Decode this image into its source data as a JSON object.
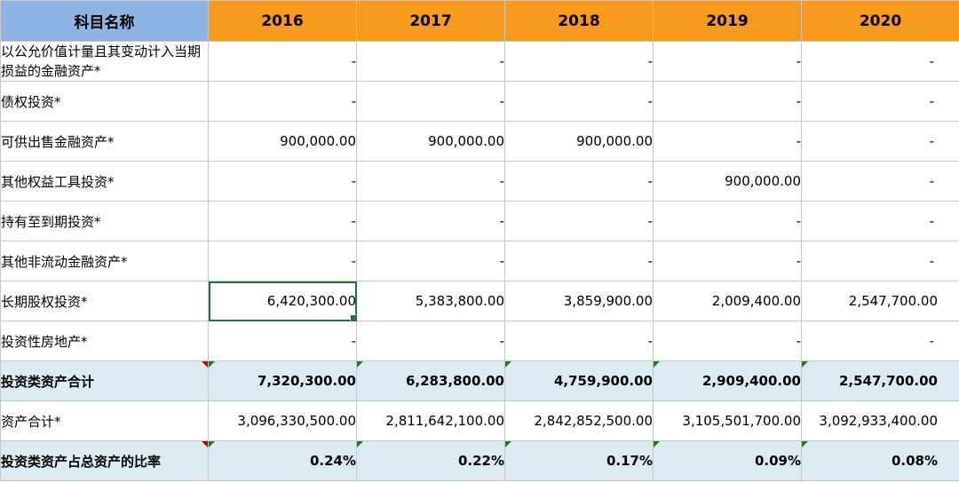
{
  "header": {
    "name": "科目名称",
    "years": [
      "2016",
      "2017",
      "2018",
      "2019",
      "2020"
    ]
  },
  "rows": [
    {
      "name": "以公允价值计量且其变动计入当期损益的金融资产*",
      "values": [
        "-",
        "-",
        "-",
        "-",
        "-"
      ]
    },
    {
      "name": "债权投资*",
      "values": [
        "-",
        "-",
        "-",
        "-",
        "-"
      ]
    },
    {
      "name": "可供出售金融资产*",
      "values": [
        "900,000.00",
        "900,000.00",
        "900,000.00",
        "-",
        "-"
      ]
    },
    {
      "name": "其他权益工具投资*",
      "values": [
        "-",
        "-",
        "-",
        "900,000.00",
        "-"
      ]
    },
    {
      "name": "持有至到期投资*",
      "values": [
        "-",
        "-",
        "-",
        "-",
        "-"
      ]
    },
    {
      "name": "其他非流动金融资产*",
      "values": [
        "-",
        "-",
        "-",
        "-",
        "-"
      ]
    },
    {
      "name": "长期股权投资*",
      "values": [
        "6,420,300.00",
        "5,383,800.00",
        "3,859,900.00",
        "2,009,400.00",
        "2,547,700.00"
      ]
    },
    {
      "name": "投资性房地产*",
      "values": [
        "-",
        "-",
        "-",
        "-",
        "-"
      ]
    },
    {
      "name": "投资类资产合计",
      "values": [
        "7,320,300.00",
        "6,283,800.00",
        "4,759,900.00",
        "2,909,400.00",
        "2,547,700.00"
      ]
    },
    {
      "name": "资产合计*",
      "values": [
        "3,096,330,500.00",
        "2,811,642,100.00",
        "2,842,852,500.00",
        "3,105,501,700.00",
        "3,092,933,400.00"
      ]
    },
    {
      "name": "投资类资产占总资产的比率",
      "values": [
        "0.24%",
        "0.22%",
        "0.17%",
        "0.09%",
        "0.08%"
      ]
    }
  ],
  "colors": {
    "name_header_bg": "#8db4e2",
    "year_header_bg": "#f79a1d",
    "total_row_bg": "#dcebf1",
    "selection": "#217346"
  }
}
